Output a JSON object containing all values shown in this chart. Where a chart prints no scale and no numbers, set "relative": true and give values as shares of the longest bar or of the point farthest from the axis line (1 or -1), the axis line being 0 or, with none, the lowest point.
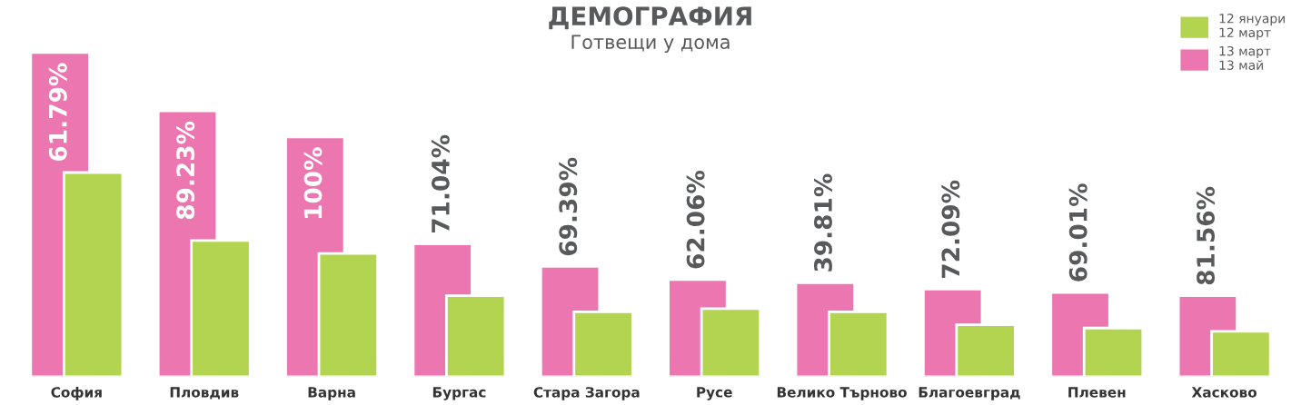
{
  "chart_data": {
    "type": "bar",
    "title": "ДЕМОГРАФИЯ",
    "subtitle": "Готвещи у дома",
    "relative": true,
    "legend": "top right",
    "categories": [
      "София",
      "Пловдив",
      "Варна",
      "Бургас",
      "Стара Загора",
      "Русе",
      "Велико Търново",
      "Благоевград",
      "Плевен",
      "Хасково"
    ],
    "series": [
      {
        "name": "13 март\n13 май",
        "color": "#ec77b0",
        "values": [
          1.0,
          0.82,
          0.74,
          0.41,
          0.34,
          0.3,
          0.29,
          0.27,
          0.26,
          0.25
        ]
      },
      {
        "name": "12 януари\n12 март",
        "color": "#b2d450",
        "values": [
          0.63,
          0.42,
          0.38,
          0.25,
          0.2,
          0.21,
          0.2,
          0.16,
          0.15,
          0.14
        ]
      }
    ],
    "annotations": [
      {
        "text": "61.79%",
        "x": "София",
        "y": 1.0
      },
      {
        "text": "89.23%",
        "x": "Пловдив",
        "y": 0.82
      },
      {
        "text": "100%",
        "x": "Варна",
        "y": 0.74
      },
      {
        "text": "71.04%",
        "x": "Бургас",
        "y": 0.41
      },
      {
        "text": "69.39%",
        "x": "Стара Загора",
        "y": 0.34
      },
      {
        "text": "62.06%",
        "x": "Русе",
        "y": 0.3
      },
      {
        "text": "39.81%",
        "x": "Велико Търново",
        "y": 0.29
      },
      {
        "text": "72.09%",
        "x": "Благоевград",
        "y": 0.27
      },
      {
        "text": "69.01%",
        "x": "Плевен",
        "y": 0.26
      },
      {
        "text": "81.56%",
        "x": "Хасково",
        "y": 0.25
      }
    ]
  }
}
